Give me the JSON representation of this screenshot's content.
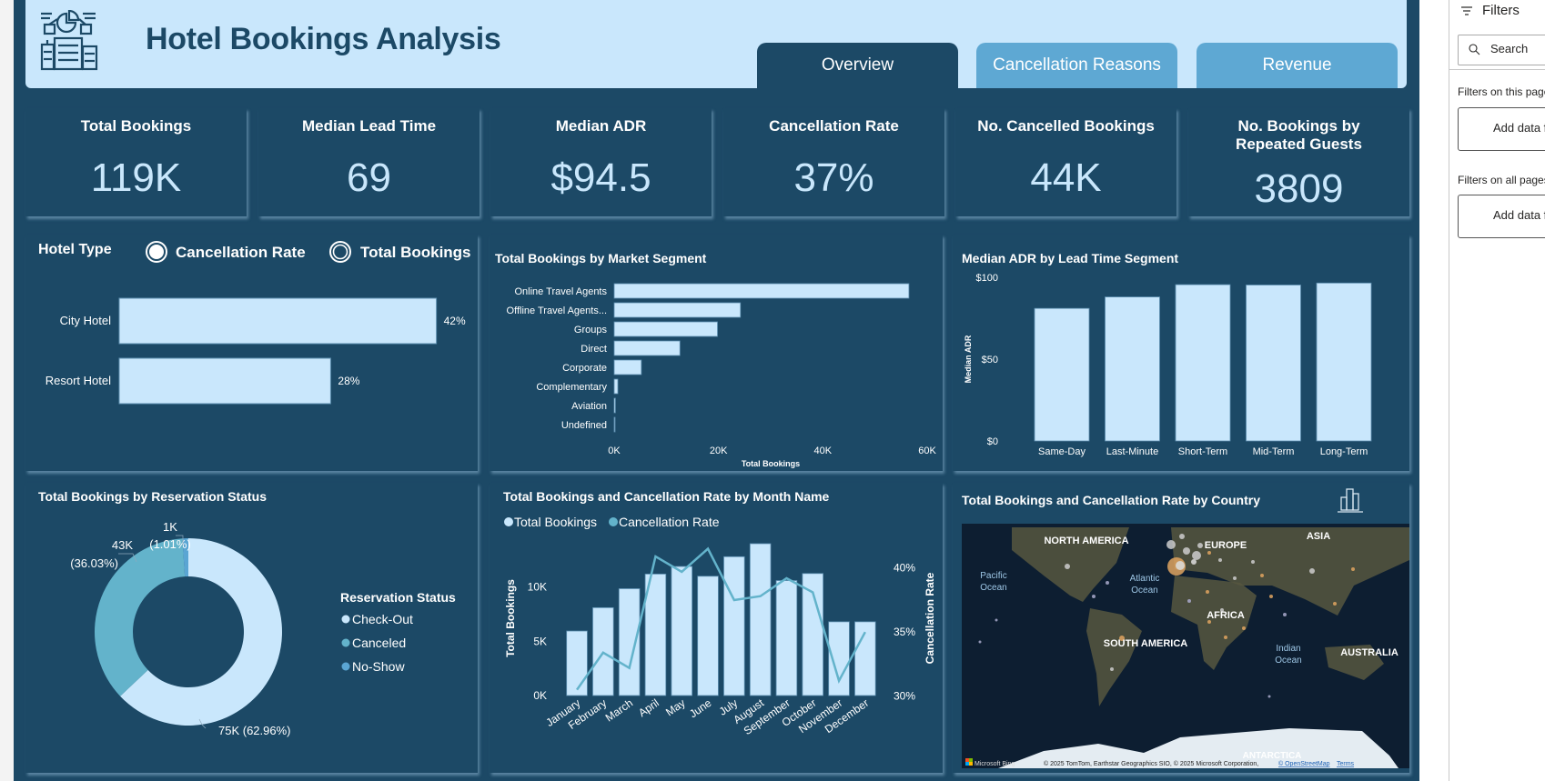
{
  "header": {
    "title": "Hotel Bookings Analysis",
    "logo_icon": "hotel-analytics-icon"
  },
  "tabs": [
    {
      "label": "Overview",
      "active": true
    },
    {
      "label": "Cancellation Reasons",
      "active": false
    },
    {
      "label": "Revenue",
      "active": false
    }
  ],
  "kpis": [
    {
      "title": "Total Bookings",
      "value": "119K"
    },
    {
      "title": "Median Lead Time",
      "value": "69"
    },
    {
      "title": "Median ADR",
      "value": "$94.5"
    },
    {
      "title": "Cancellation Rate",
      "value": "37%"
    },
    {
      "title": "No. Cancelled Bookings",
      "value": "44K"
    },
    {
      "title": "No. Bookings by Repeated Guests",
      "value": "3809"
    }
  ],
  "colors": {
    "background": "#1c4966",
    "light": "#c9e7fc",
    "canceled": "#63b3cb",
    "noshow": "#5aa5d3",
    "tab_inactive": "#5ea8d3"
  },
  "filters": {
    "title": "Filters",
    "search_placeholder": "Search",
    "this_page": "Filters on this page",
    "all_pages": "Filters on all pages",
    "add_label": "Add data fields here"
  },
  "chart_data": [
    {
      "type": "bar",
      "orientation": "horizontal",
      "title": "Hotel Type",
      "toggle": {
        "options": [
          "Cancellation Rate",
          "Total Bookings"
        ],
        "selected": "Cancellation Rate"
      },
      "categories": [
        "City Hotel",
        "Resort Hotel"
      ],
      "values": [
        42,
        28
      ],
      "labels": [
        "42%",
        "28%"
      ]
    },
    {
      "type": "bar",
      "orientation": "horizontal",
      "title": "Total Bookings by Market Segment",
      "xlabel": "Total Bookings",
      "categories": [
        "Online Travel Agents",
        "Offline Travel Agents...",
        "Groups",
        "Direct",
        "Corporate",
        "Complementary",
        "Aviation",
        "Undefined"
      ],
      "values": [
        56500,
        24200,
        19800,
        12600,
        5200,
        700,
        240,
        2
      ],
      "xlim": [
        0,
        60000
      ],
      "xticks": [
        "0K",
        "20K",
        "40K",
        "60K"
      ]
    },
    {
      "type": "bar",
      "title": "Median ADR by Lead Time Segment",
      "ylabel": "Median ADR",
      "categories": [
        "Same-Day",
        "Last-Minute",
        "Short-Term",
        "Mid-Term",
        "Long-Term"
      ],
      "values": [
        81,
        88,
        95.5,
        95.3,
        96.5
      ],
      "ylim": [
        0,
        100
      ],
      "yticks": [
        "$0",
        "$50",
        "$100"
      ]
    },
    {
      "type": "pie",
      "title": "Total Bookings by Reservation Status",
      "legend_title": "Reservation Status",
      "slices": [
        {
          "name": "Check-Out",
          "value": 62.96,
          "label": "75K (62.96%)",
          "color": "#c9e7fc"
        },
        {
          "name": "Canceled",
          "value": 36.03,
          "label": "43K (36.03%)",
          "label_lines": [
            "43K",
            "(36.03%)"
          ],
          "color": "#63b3cb"
        },
        {
          "name": "No-Show",
          "value": 1.01,
          "label": "1K (1.01%)",
          "label_lines": [
            "1K",
            "(1.01%)"
          ],
          "color": "#5aa5d3"
        }
      ]
    },
    {
      "type": "bar",
      "combo": "bar+line",
      "title": "Total Bookings and Cancellation Rate by Month Name",
      "ylabel": "Total Bookings",
      "y2label": "Cancellation Rate",
      "categories": [
        "January",
        "February",
        "March",
        "April",
        "May",
        "June",
        "July",
        "August",
        "September",
        "October",
        "November",
        "December"
      ],
      "series": [
        {
          "name": "Total Bookings",
          "type": "bar",
          "color": "#c9e7fc",
          "values": [
            5950,
            8100,
            9850,
            11200,
            11900,
            11000,
            12800,
            14000,
            10600,
            11250,
            6800,
            6800
          ]
        },
        {
          "name": "Cancellation Rate",
          "type": "line",
          "color": "#63b3cb",
          "values": [
            30.5,
            33.4,
            32.2,
            40.9,
            39.7,
            41.5,
            37.5,
            37.8,
            39.2,
            38.1,
            31.2,
            35.0
          ]
        }
      ],
      "yticks": [
        "0K",
        "5K",
        "10K"
      ],
      "y2ticks": [
        "30%",
        "35%",
        "40%"
      ],
      "legend": "top-left"
    },
    {
      "type": "map",
      "title": "Total Bookings and Cancellation Rate by Country",
      "icon": "bar-chart-icon",
      "labels": [
        "NORTH AMERICA",
        "EUROPE",
        "ASIA",
        "Pacific",
        "Ocean",
        "Atlantic",
        "Ocean",
        "AFRICA",
        "SOUTH AMERICA",
        "Indian",
        "Ocean",
        "AUSTRALIA",
        "ANTARCTICA"
      ],
      "brand": "Microsoft Bing",
      "attribution": "© 2025 TomTom, Earthstar Geographics SIO, © 2025 Microsoft Corporation,",
      "osm_link": "© OpenStreetMap",
      "terms_link": "Terms"
    }
  ]
}
